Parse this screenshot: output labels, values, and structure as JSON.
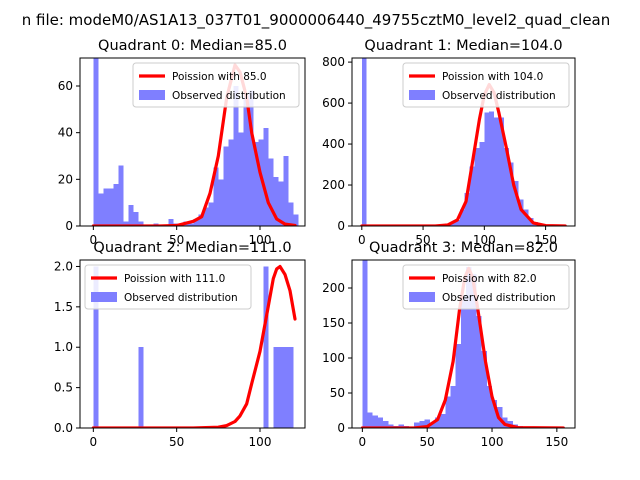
{
  "figure": {
    "suptitle": "n file: modeM0/AS1A13_037T01_9000006440_49755cztM0_level2_quad_clean"
  },
  "colors": {
    "bar": "#7f7fff",
    "line": "#ff0000",
    "axes": "#000000",
    "legend_edge": "#cccccc"
  },
  "chart_data": [
    {
      "type": "bar",
      "title": "Quadrant 0: Median=85.0",
      "xlim": [
        -8,
        127
      ],
      "ylim": [
        0,
        72
      ],
      "xticks": [
        0,
        50,
        100
      ],
      "yticks": [
        0,
        20,
        40,
        60
      ],
      "bin_width": 3,
      "bars": [
        [
          0,
          72
        ],
        [
          3,
          14
        ],
        [
          6,
          16
        ],
        [
          9,
          16
        ],
        [
          12,
          18
        ],
        [
          15,
          26
        ],
        [
          18,
          2
        ],
        [
          21,
          9
        ],
        [
          24,
          6
        ],
        [
          27,
          2
        ],
        [
          36,
          1
        ],
        [
          45,
          3
        ],
        [
          48,
          1
        ],
        [
          51,
          1
        ],
        [
          54,
          2
        ],
        [
          57,
          1
        ],
        [
          60,
          3
        ],
        [
          63,
          5
        ],
        [
          66,
          8
        ],
        [
          69,
          10
        ],
        [
          72,
          25
        ],
        [
          75,
          20
        ],
        [
          78,
          34
        ],
        [
          81,
          37
        ],
        [
          84,
          60
        ],
        [
          87,
          40
        ],
        [
          90,
          56
        ],
        [
          93,
          58
        ],
        [
          96,
          36
        ],
        [
          99,
          37
        ],
        [
          102,
          42
        ],
        [
          105,
          29
        ],
        [
          108,
          21
        ],
        [
          111,
          19
        ],
        [
          114,
          30
        ],
        [
          117,
          10
        ],
        [
          120,
          5
        ]
      ],
      "legend": {
        "position": "upper-right",
        "line_label": "Poission with 85.0",
        "bar_label": "Observed distribution"
      },
      "poisson_line": {
        "x": [
          0,
          40,
          50,
          60,
          65,
          70,
          75,
          80,
          85,
          88,
          92,
          95,
          100,
          105,
          110,
          115,
          121
        ],
        "y": [
          0,
          0,
          0.2,
          2,
          4,
          14,
          30,
          55,
          69,
          66,
          55,
          40,
          23,
          10,
          3,
          0.8,
          0.2
        ]
      }
    },
    {
      "type": "bar",
      "title": "Quadrant 1: Median=104.0",
      "xlim": [
        -8,
        174
      ],
      "ylim": [
        0,
        820
      ],
      "xticks": [
        0,
        50,
        100,
        150
      ],
      "yticks": [
        0,
        200,
        400,
        600,
        800
      ],
      "bin_width": 4,
      "bars": [
        [
          0,
          820
        ],
        [
          56,
          5
        ],
        [
          60,
          5
        ],
        [
          64,
          10
        ],
        [
          68,
          10
        ],
        [
          72,
          20
        ],
        [
          76,
          30
        ],
        [
          80,
          80
        ],
        [
          84,
          160
        ],
        [
          88,
          290
        ],
        [
          92,
          380
        ],
        [
          96,
          410
        ],
        [
          100,
          555
        ],
        [
          104,
          560
        ],
        [
          108,
          530
        ],
        [
          112,
          530
        ],
        [
          116,
          380
        ],
        [
          120,
          310
        ],
        [
          124,
          220
        ],
        [
          128,
          130
        ],
        [
          132,
          80
        ],
        [
          136,
          40
        ],
        [
          140,
          20
        ],
        [
          144,
          10
        ],
        [
          148,
          5
        ]
      ],
      "legend": {
        "position": "upper-right",
        "line_label": "Poission with 104.0",
        "bar_label": "Observed distribution"
      },
      "poisson_line": {
        "x": [
          0,
          60,
          70,
          78,
          85,
          90,
          96,
          100,
          104,
          108,
          112,
          118,
          124,
          130,
          140,
          150,
          166
        ],
        "y": [
          0,
          0,
          5,
          30,
          120,
          300,
          520,
          640,
          690,
          650,
          550,
          380,
          200,
          80,
          15,
          2,
          0
        ]
      }
    },
    {
      "type": "bar",
      "title": "Quadrant 2: Median=111.0",
      "xlim": [
        -8,
        127
      ],
      "ylim": [
        0,
        2.08
      ],
      "xticks": [
        0,
        50,
        100
      ],
      "yticks": [
        0.0,
        0.5,
        1.0,
        1.5,
        2.0
      ],
      "tick_format": "0.0",
      "bin_width": 3,
      "bars": [
        [
          0,
          2
        ],
        [
          27,
          1
        ],
        [
          102,
          2
        ],
        [
          108,
          1
        ],
        [
          111,
          1
        ],
        [
          114,
          1
        ],
        [
          117,
          1
        ]
      ],
      "legend": {
        "position": "upper-left",
        "line_label": "Poission with 111.0",
        "bar_label": "Observed distribution"
      },
      "poisson_line": {
        "x": [
          0,
          60,
          75,
          80,
          85,
          88,
          92,
          95,
          100,
          104,
          108,
          110,
          112,
          115,
          118,
          121
        ],
        "y": [
          0,
          0,
          0.01,
          0.03,
          0.08,
          0.15,
          0.3,
          0.55,
          0.95,
          1.4,
          1.85,
          1.97,
          2.0,
          1.9,
          1.7,
          1.35
        ]
      }
    },
    {
      "type": "bar",
      "title": "Quadrant 3: Median=82.0",
      "xlim": [
        -8,
        164
      ],
      "ylim": [
        0,
        240
      ],
      "xticks": [
        0,
        50,
        100,
        150
      ],
      "yticks": [
        0,
        50,
        100,
        150,
        200
      ],
      "bin_width": 4,
      "bars": [
        [
          0,
          240
        ],
        [
          4,
          22
        ],
        [
          8,
          18
        ],
        [
          12,
          15
        ],
        [
          16,
          10
        ],
        [
          20,
          5
        ],
        [
          24,
          3
        ],
        [
          28,
          5
        ],
        [
          32,
          3
        ],
        [
          36,
          2
        ],
        [
          40,
          8
        ],
        [
          44,
          10
        ],
        [
          48,
          12
        ],
        [
          52,
          8
        ],
        [
          56,
          15
        ],
        [
          60,
          20
        ],
        [
          64,
          45
        ],
        [
          68,
          60
        ],
        [
          72,
          120
        ],
        [
          76,
          190
        ],
        [
          80,
          230
        ],
        [
          84,
          220
        ],
        [
          88,
          160
        ],
        [
          92,
          110
        ],
        [
          96,
          60
        ],
        [
          100,
          40
        ],
        [
          104,
          30
        ],
        [
          108,
          15
        ],
        [
          112,
          10
        ],
        [
          116,
          5
        ],
        [
          120,
          3
        ],
        [
          124,
          2
        ],
        [
          128,
          1
        ]
      ],
      "legend": {
        "position": "upper-right",
        "line_label": "Poission with 82.0",
        "bar_label": "Observed distribution"
      },
      "poisson_line": {
        "x": [
          0,
          40,
          50,
          58,
          64,
          70,
          75,
          79,
          82,
          85,
          89,
          95,
          100,
          105,
          110,
          120,
          155
        ],
        "y": [
          0,
          0,
          2,
          12,
          40,
          95,
          170,
          215,
          228,
          215,
          170,
          95,
          45,
          15,
          5,
          0.5,
          0
        ]
      }
    }
  ]
}
